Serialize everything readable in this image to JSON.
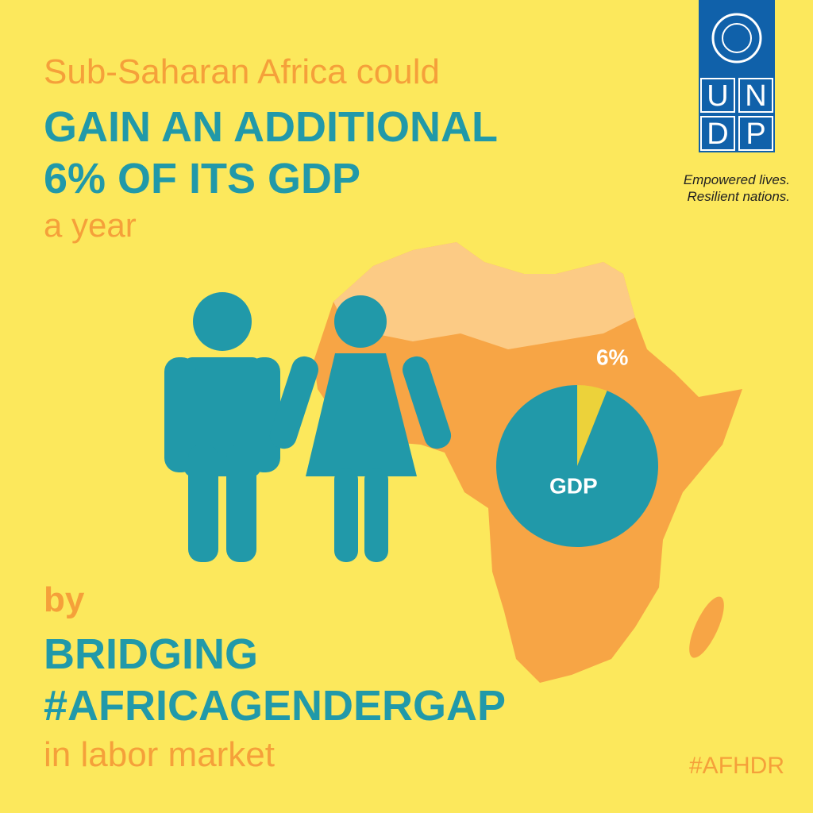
{
  "headline": {
    "line1": "Sub-Saharan Africa could",
    "line2": "GAIN AN ADDITIONAL",
    "line3": "6% OF ITS GDP",
    "line4": "a year"
  },
  "bottom": {
    "line1": "by",
    "line2": "BRIDGING",
    "line3": "#AFRICAGENDERGAP",
    "line4": "in labor market"
  },
  "logo": {
    "letters": [
      "U",
      "N",
      "D",
      "P"
    ],
    "tagline1": "Empowered lives.",
    "tagline2": "Resilient nations."
  },
  "hashtag": "#AFHDR",
  "chart_data": {
    "type": "pie",
    "categories": [
      null,
      "GDP"
    ],
    "values": [
      6,
      94
    ],
    "value_labels": [
      "6%",
      null
    ],
    "colors": [
      "#ecd23a",
      "#2199a9"
    ]
  }
}
